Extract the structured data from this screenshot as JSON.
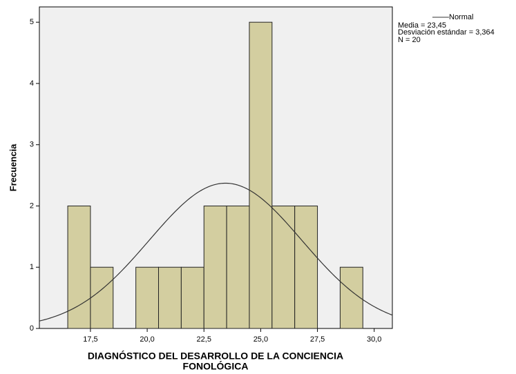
{
  "chart_data": {
    "type": "histogram",
    "xlabel": [
      "DIAGNÓSTICO DEL DESARROLLO DE LA CONCIENCIA",
      "FONOLÓGICA"
    ],
    "ylabel": "Frecuencia",
    "bins": [
      16.5,
      17.5,
      18.5,
      19.5,
      20.5,
      21.5,
      22.5,
      23.5,
      24.5,
      25.5,
      26.5,
      27.5,
      28.5,
      29.5
    ],
    "values": [
      2,
      1,
      0,
      1,
      1,
      1,
      2,
      2,
      5,
      2,
      2,
      0,
      1
    ],
    "color": "#d3cea0",
    "xlim": [
      15.25,
      30.8
    ],
    "ylim": [
      0,
      5.25
    ],
    "xticks": [
      {
        "value": 17.5,
        "label": "17,5"
      },
      {
        "value": 20.0,
        "label": "20,0"
      },
      {
        "value": 22.5,
        "label": "22,5"
      },
      {
        "value": 25.0,
        "label": "25,0"
      },
      {
        "value": 27.5,
        "label": "27,5"
      },
      {
        "value": 30.0,
        "label": "30,0"
      }
    ],
    "yticks": [
      0,
      1,
      2,
      3,
      4,
      5
    ],
    "normal": {
      "name": "Normal",
      "color": "#333333",
      "stats": [
        {
          "value": 23.45,
          "label": "Media = 23,45"
        },
        {
          "value": 3.364,
          "label": "Desviación estándar = 3,364"
        },
        {
          "value": 20,
          "label": "N = 20"
        }
      ]
    }
  }
}
